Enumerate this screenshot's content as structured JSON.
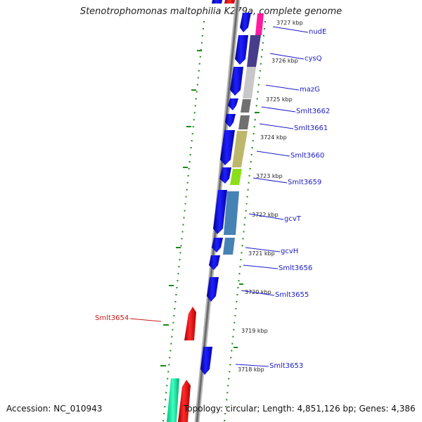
{
  "title": "Stenotrophomonas maltophilia K279a, complete genome",
  "accession": "Accession: NC_010943",
  "topology": "Topology: circular; Length: 4,851,126 bp; Genes: 4,386",
  "colors": {
    "forward_gene": "#0a0aee",
    "reverse_gene": "#ee1010",
    "forward_label": "#1a1ac8",
    "reverse_label": "#c81a1a",
    "backbone": "#8c8c8c",
    "gc_dots": "#1a8a1a"
  },
  "kbp_labels": [
    "3727 kbp",
    "3726 kbp",
    "3725 kbp",
    "3724 kbp",
    "3723 kbp",
    "3722 kbp",
    "3721 kbp",
    "3720 kbp",
    "3719 kbp",
    "3718 kbp"
  ],
  "gene_labels": [
    {
      "name": "nudE",
      "strand": "forward"
    },
    {
      "name": "cysQ",
      "strand": "forward"
    },
    {
      "name": "mazG",
      "strand": "forward"
    },
    {
      "name": "Smlt3662",
      "strand": "forward"
    },
    {
      "name": "Smlt3661",
      "strand": "forward"
    },
    {
      "name": "Smlt3660",
      "strand": "forward"
    },
    {
      "name": "Smlt3659",
      "strand": "forward"
    },
    {
      "name": "gcvT",
      "strand": "forward"
    },
    {
      "name": "gcvH",
      "strand": "forward"
    },
    {
      "name": "Smlt3656",
      "strand": "forward"
    },
    {
      "name": "Smlt3655",
      "strand": "forward"
    },
    {
      "name": "Smlt3654",
      "strand": "reverse"
    },
    {
      "name": "Smlt3653",
      "strand": "forward"
    }
  ]
}
